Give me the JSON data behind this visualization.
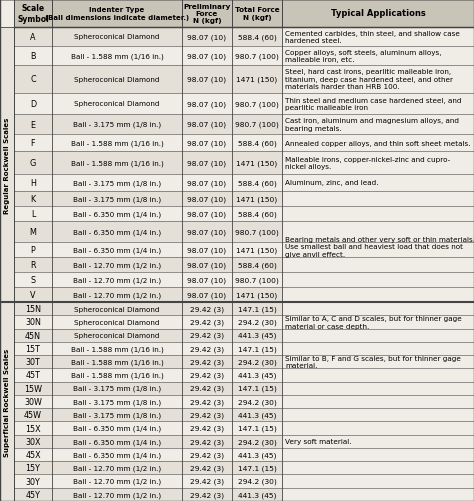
{
  "header": [
    "Scale\nSymbol",
    "Indenter Type\n(Ball dimensions indicate diameter.)",
    "Preliminary\nForce\nN (kgf)",
    "Total Force\nN (kgf)",
    "Typical Applications"
  ],
  "regular_label": "Regular Rockwell Scales",
  "superficial_label": "Superficial Rockwell Scales",
  "regular_rows": [
    [
      "A",
      "Spheroconical Diamond",
      "98.07 (10)",
      "588.4 (60)",
      "Cemented carbides, thin steel, and shallow case\nhardened steel."
    ],
    [
      "B",
      "Ball - 1.588 mm (1/16 in.)",
      "98.07 (10)",
      "980.7 (100)",
      "Copper alloys, soft steels, aluminum alloys,\nmalleable iron, etc."
    ],
    [
      "C",
      "Spheroconical Diamond",
      "98.07 (10)",
      "1471 (150)",
      "Steel, hard cast irons, pearlitic malleable iron,\ntitanium, deep case hardened steel, and other\nmaterials harder than HRB 100."
    ],
    [
      "D",
      "Spheroconical Diamond",
      "98.07 (10)",
      "980.7 (100)",
      "Thin steel and medium case hardened steel, and\npearlitic malleable iron"
    ],
    [
      "E",
      "Ball - 3.175 mm (1/8 in.)",
      "98.07 (10)",
      "980.7 (100)",
      "Cast iron, aluminum and magnesium alloys, and\nbearing metals."
    ],
    [
      "F",
      "Ball - 1.588 mm (1/16 in.)",
      "98.07 (10)",
      "588.4 (60)",
      "Annealed copper alloys, and thin soft sheet metals."
    ],
    [
      "G",
      "Ball - 1.588 mm (1/16 in.)",
      "98.07 (10)",
      "1471 (150)",
      "Malleable irons, copper-nickel-zinc and cupro-\nnickel alloys."
    ],
    [
      "H",
      "Ball - 3.175 mm (1/8 in.)",
      "98.07 (10)",
      "588.4 (60)",
      "Aluminum, zinc, and lead."
    ],
    [
      "K",
      "Ball - 3.175 mm (1/8 in.)",
      "98.07 (10)",
      "1471 (150)",
      ""
    ],
    [
      "L",
      "Ball - 6.350 mm (1/4 in.)",
      "98.07 (10)",
      "588.4 (60)",
      ""
    ],
    [
      "M",
      "Ball - 6.350 mm (1/4 in.)",
      "98.07 (10)",
      "980.7 (100)",
      "Bearing metals and other very soft or thin materials.\nUse smallest ball and heaviest load that does not\ngive anvil effect."
    ],
    [
      "P",
      "Ball - 6.350 mm (1/4 in.)",
      "98.07 (10)",
      "1471 (150)",
      ""
    ],
    [
      "R",
      "Ball - 12.70 mm (1/2 in.)",
      "98.07 (10)",
      "588.4 (60)",
      ""
    ],
    [
      "S",
      "Ball - 12.70 mm (1/2 in.)",
      "98.07 (10)",
      "980.7 (100)",
      ""
    ],
    [
      "V",
      "Ball - 12.70 mm (1/2 in.)",
      "98.07 (10)",
      "1471 (150)",
      ""
    ]
  ],
  "superficial_rows": [
    [
      "15N",
      "Spheroconical Diamond",
      "29.42 (3)",
      "147.1 (15)",
      "Similar to A, C and D scales, but for thinner gage\nmaterial or case depth."
    ],
    [
      "30N",
      "Spheroconical Diamond",
      "29.42 (3)",
      "294.2 (30)",
      ""
    ],
    [
      "45N",
      "Spheroconical Diamond",
      "29.42 (3)",
      "441.3 (45)",
      ""
    ],
    [
      "15T",
      "Ball - 1.588 mm (1/16 in.)",
      "29.42 (3)",
      "147.1 (15)",
      "Similar to B, F and G scales, but for thinner gage\nmaterial."
    ],
    [
      "30T",
      "Ball - 1.588 mm (1/16 in.)",
      "29.42 (3)",
      "294.2 (30)",
      ""
    ],
    [
      "45T",
      "Ball - 1.588 mm (1/16 in.)",
      "29.42 (3)",
      "441.3 (45)",
      ""
    ],
    [
      "15W",
      "Ball - 3.175 mm (1/8 in.)",
      "29.42 (3)",
      "147.1 (15)",
      ""
    ],
    [
      "30W",
      "Ball - 3.175 mm (1/8 in.)",
      "29.42 (3)",
      "294.2 (30)",
      ""
    ],
    [
      "45W",
      "Ball - 3.175 mm (1/8 in.)",
      "29.42 (3)",
      "441.3 (45)",
      ""
    ],
    [
      "15X",
      "Ball - 6.350 mm (1/4 in.)",
      "29.42 (3)",
      "147.1 (15)",
      ""
    ],
    [
      "30X",
      "Ball - 6.350 mm (1/4 in.)",
      "29.42 (3)",
      "294.2 (30)",
      "Very soft material."
    ],
    [
      "45X",
      "Ball - 6.350 mm (1/4 in.)",
      "29.42 (3)",
      "441.3 (45)",
      ""
    ],
    [
      "15Y",
      "Ball - 12.70 mm (1/2 in.)",
      "29.42 (3)",
      "147.1 (15)",
      ""
    ],
    [
      "30Y",
      "Ball - 12.70 mm (1/2 in.)",
      "29.42 (3)",
      "294.2 (30)",
      ""
    ],
    [
      "45Y",
      "Ball - 12.70 mm (1/2 in.)",
      "29.42 (3)",
      "441.3 (45)",
      ""
    ]
  ],
  "bg_color": "#f0ede6",
  "header_bg": "#c8c4b8",
  "line_color": "#444444",
  "text_color": "#000000",
  "side_label_bg": "#e8e4dc",
  "alt_row_bg": "#e4e0d8"
}
